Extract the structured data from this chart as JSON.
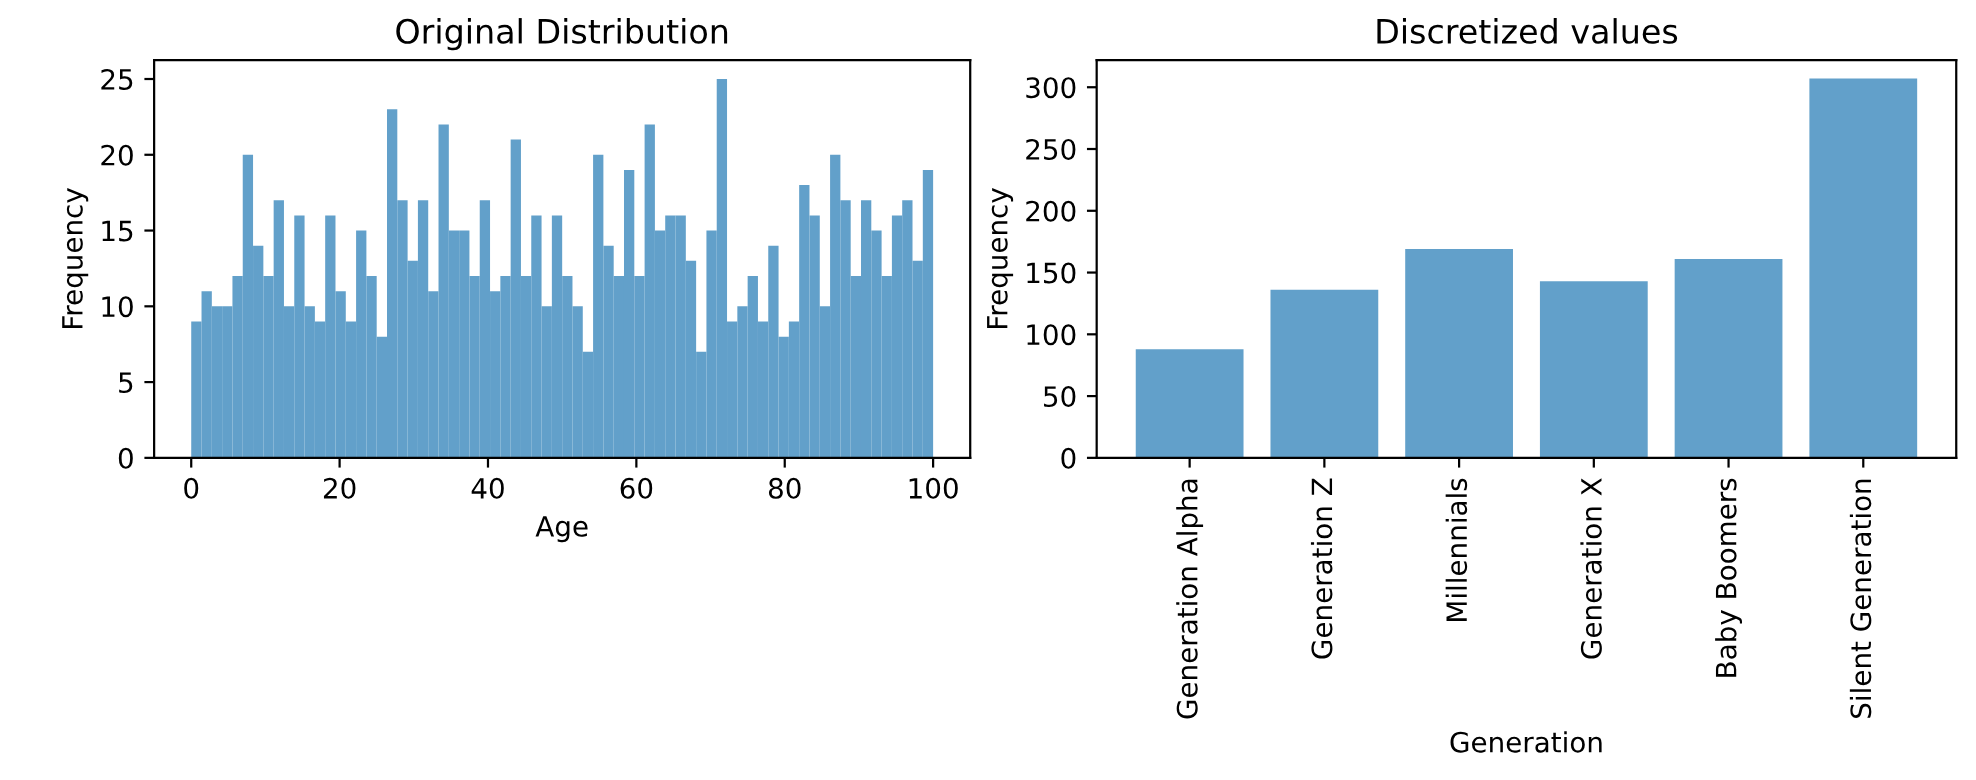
{
  "chart_data": [
    {
      "type": "histogram",
      "title": "Original Distribution",
      "xlabel": "Age",
      "ylabel": "Frequency",
      "color": "#62a0ca",
      "bins": [
        0,
        1.3889,
        2.7778,
        4.1667,
        5.5556,
        6.9444,
        8.3333,
        9.7222,
        11.1111,
        12.5,
        13.8889,
        15.2778,
        16.6667,
        18.0556,
        19.4444,
        20.8333,
        22.2222,
        23.6111,
        25,
        26.3889,
        27.7778,
        29.1667,
        30.5556,
        31.9444,
        33.3333,
        34.7222,
        36.1111,
        37.5,
        38.8889,
        40.2778,
        41.6667,
        43.0556,
        44.4444,
        45.8333,
        47.2222,
        48.6111,
        50,
        51.3889,
        52.7778,
        54.1667,
        55.5556,
        56.9444,
        58.3333,
        59.7222,
        61.1111,
        62.5,
        63.8889,
        65.2778,
        66.6667,
        68.0556,
        69.4444,
        70.8333,
        72.2222,
        73.6111,
        75,
        76.3889,
        77.7778,
        79.1667,
        80.5556,
        81.9444,
        83.3333,
        84.7222,
        86.1111,
        87.5,
        88.8889,
        90.2778,
        91.6667,
        93.0556,
        94.4444,
        95.8333,
        97.2222,
        98.6111,
        100
      ],
      "values": [
        9,
        11,
        10,
        10,
        12,
        20,
        14,
        12,
        17,
        10,
        16,
        10,
        9,
        16,
        11,
        9,
        15,
        12,
        8,
        23,
        17,
        13,
        17,
        11,
        22,
        15,
        15,
        12,
        17,
        11,
        12,
        21,
        12,
        16,
        10,
        16,
        12,
        10,
        7,
        20,
        14,
        12,
        19,
        12,
        22,
        15,
        16,
        16,
        13,
        7,
        15,
        25,
        9,
        10,
        12,
        9,
        14,
        8,
        9,
        18,
        16,
        10,
        20,
        17,
        12,
        17,
        15,
        12,
        16,
        17,
        13,
        19
      ],
      "xlim": [
        -5,
        105
      ],
      "xticks": [
        0,
        20,
        40,
        60,
        80,
        100
      ],
      "ylim": [
        0,
        26.25
      ],
      "yticks": [
        0,
        5,
        10,
        15,
        20,
        25
      ]
    },
    {
      "type": "bar",
      "title": "Discretized values",
      "xlabel": "Generation",
      "ylabel": "Frequency",
      "color": "#62a0ca",
      "categories": [
        "Generation Alpha",
        "Generation Z",
        "Millennials",
        "Generation X",
        "Baby Boomers",
        "Silent Generation"
      ],
      "values": [
        88,
        136,
        169,
        143,
        161,
        307
      ],
      "ylim": [
        0,
        322
      ],
      "yticks": [
        0,
        50,
        100,
        150,
        200,
        250,
        300
      ]
    }
  ]
}
